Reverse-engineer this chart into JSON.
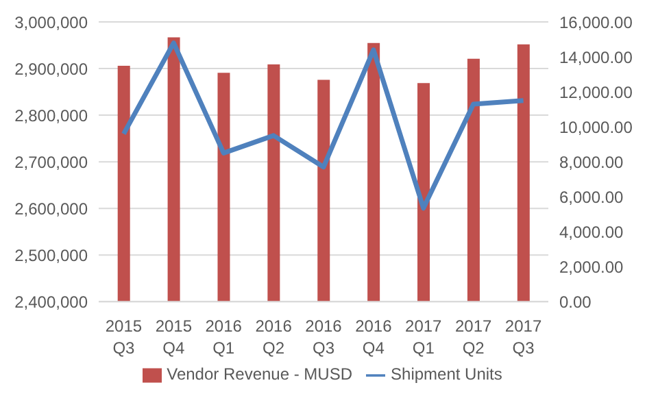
{
  "chart_data": {
    "type": "bar",
    "categories": [
      "2015 Q3",
      "2015 Q4",
      "2016 Q1",
      "2016 Q2",
      "2016 Q3",
      "2016 Q4",
      "2017 Q1",
      "2017 Q2",
      "2017 Q3"
    ],
    "series": [
      {
        "name": "Vendor Revenue - MUSD",
        "color": "#c0504d",
        "values": [
          2906000,
          2967000,
          2891000,
          2909000,
          2876000,
          2955000,
          2869000,
          2921000,
          2952000
        ]
      },
      {
        "name": "Shipment Units",
        "type": "line",
        "axis": "y2",
        "color": "#4f81bd",
        "values": [
          9600,
          14800,
          8500,
          9500,
          7700,
          14400,
          5350,
          11300,
          11500
        ]
      }
    ],
    "ylim": [
      2400000,
      3000000
    ],
    "yticks": [
      {
        "value": 2400000,
        "label": "2,400,000"
      },
      {
        "value": 2500000,
        "label": "2,500,000"
      },
      {
        "value": 2600000,
        "label": "2,600,000"
      },
      {
        "value": 2700000,
        "label": "2,700,000"
      },
      {
        "value": 2800000,
        "label": "2,800,000"
      },
      {
        "value": 2900000,
        "label": "2,900,000"
      },
      {
        "value": 3000000,
        "label": "3,000,000"
      }
    ],
    "y2lim": [
      0,
      16000
    ],
    "y2ticks": [
      {
        "value": 0,
        "label": "0.00"
      },
      {
        "value": 2000,
        "label": "2,000.00"
      },
      {
        "value": 4000,
        "label": "4,000.00"
      },
      {
        "value": 6000,
        "label": "6,000.00"
      },
      {
        "value": 8000,
        "label": "8,000.00"
      },
      {
        "value": 10000,
        "label": "10,000.00"
      },
      {
        "value": 12000,
        "label": "12,000.00"
      },
      {
        "value": 14000,
        "label": "14,000.00"
      },
      {
        "value": 16000,
        "label": "16,000.00"
      }
    ],
    "grid": "y",
    "legend": "bottom",
    "marker": "none",
    "line_style": "solid"
  }
}
